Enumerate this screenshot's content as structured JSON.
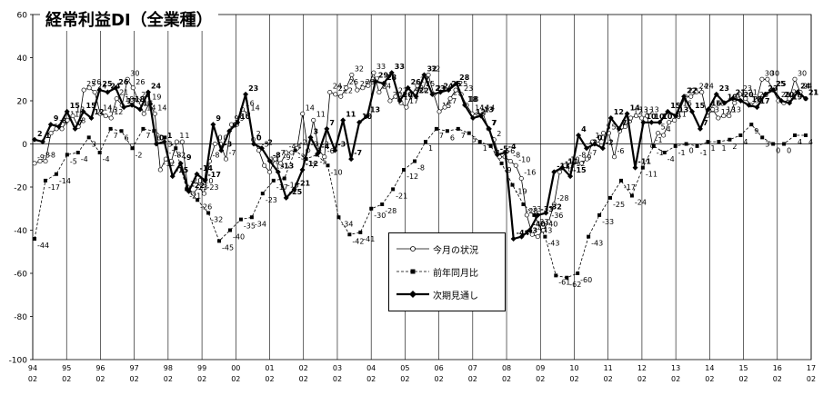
{
  "chart_data": {
    "type": "line",
    "title": "経常利益DI（全業種）",
    "ylim": [
      -100,
      60
    ],
    "yticks": [
      "60",
      "40",
      "20",
      "0",
      "-20",
      "-40",
      "-60",
      "-80",
      "-100"
    ],
    "xtick_years": [
      "94",
      "95",
      "96",
      "97",
      "98",
      "99",
      "00",
      "01",
      "02",
      "03",
      "04",
      "05",
      "06",
      "07",
      "08",
      "09",
      "10",
      "11",
      "12",
      "13",
      "14",
      "15",
      "16",
      "17"
    ],
    "xtick_month": "02",
    "grid": "vertical",
    "legend_position": "center",
    "series": [
      {
        "name": "今月の状況",
        "marker": "open-circle",
        "style": "thin",
        "values": [
          -9,
          -8,
          -8,
          5,
          7,
          7,
          11,
          13,
          8,
          25,
          26,
          24,
          14,
          13,
          12,
          21,
          18,
          30,
          26,
          20,
          14,
          19,
          14,
          -12,
          -7,
          -8,
          1,
          1,
          -20,
          -23,
          -20,
          -23,
          -8,
          0,
          0,
          -7,
          9,
          9,
          16,
          14,
          2,
          -3,
          -10,
          -13,
          -7,
          -9,
          -4,
          -4,
          -2,
          14,
          -3,
          11,
          -3,
          -6,
          24,
          23,
          22,
          26,
          32,
          25,
          26,
          27,
          33,
          24,
          28,
          20,
          22,
          19,
          17,
          23,
          27,
          25,
          32,
          23,
          15,
          17,
          21,
          25,
          23,
          18,
          14,
          14,
          14,
          7,
          2,
          -6,
          -6,
          -8,
          -10,
          -16,
          -33,
          -42,
          -43,
          -40,
          -36,
          -28,
          -13,
          -10,
          -12,
          -8,
          -9,
          -7,
          1,
          0,
          5,
          5,
          -6,
          6,
          8,
          12,
          13,
          12,
          13,
          -1,
          5,
          4,
          10,
          11,
          16,
          22,
          22,
          24,
          24,
          13,
          16,
          12,
          13,
          13,
          19,
          23,
          21,
          18,
          20,
          30,
          30,
          25,
          20,
          19,
          21,
          30,
          24,
          21
        ]
      },
      {
        "name": "前年同月比",
        "marker": "filled-square",
        "style": "dashed",
        "values": [
          -44,
          -17,
          -14,
          -5,
          -4,
          3,
          -4,
          7,
          6,
          -2,
          7,
          6,
          3,
          -2,
          -21,
          -26,
          -32,
          -45,
          -40,
          -35,
          -34,
          -23,
          -17,
          -16,
          -3,
          -7,
          -5,
          -10,
          -34,
          -42,
          -41,
          -30,
          -28,
          -21,
          -12,
          -8,
          1,
          7,
          6,
          7,
          5,
          1,
          -1,
          -9,
          -19,
          -28,
          -33,
          -43,
          -61,
          -62,
          -60,
          -43,
          -33,
          -25,
          -17,
          -24,
          -11,
          -1,
          -4,
          -1,
          0,
          -1,
          1,
          1,
          2,
          4,
          9,
          3,
          0,
          0,
          4,
          4
        ]
      },
      {
        "name": "次期見通し",
        "marker": "filled-diamond",
        "style": "thick",
        "values": [
          2,
          1,
          9,
          8,
          15,
          7,
          15,
          12,
          25,
          24,
          26,
          17,
          18,
          16,
          24,
          0,
          1,
          -15,
          -9,
          -22,
          -14,
          -17,
          9,
          -3,
          6,
          10,
          23,
          0,
          -2,
          -8,
          -13,
          -25,
          -21,
          -12,
          3,
          -4,
          7,
          -3,
          11,
          -7,
          10,
          13,
          29,
          28,
          33,
          20,
          26,
          22,
          32,
          23,
          24,
          25,
          28,
          18,
          12,
          13,
          7,
          -5,
          -4,
          -44,
          -43,
          -40,
          -33,
          -32,
          -13,
          -11,
          -15,
          4,
          -2,
          0,
          -2,
          12,
          7,
          14,
          -11,
          10,
          10,
          10,
          15,
          13,
          22,
          15,
          7,
          16,
          23,
          19,
          21,
          20,
          18,
          17,
          23,
          25,
          20,
          19,
          24,
          21
        ]
      }
    ]
  }
}
